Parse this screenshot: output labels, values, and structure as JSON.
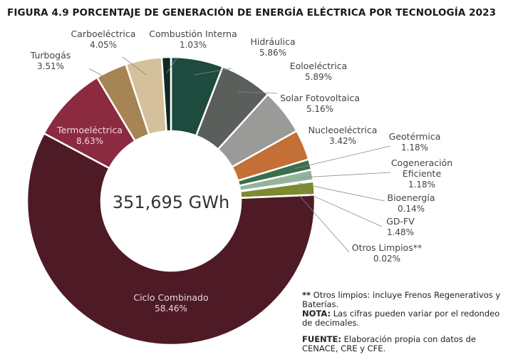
{
  "title": "FIGURA 4.9 PORCENTAJE DE GENERACIÓN DE ENERGÍA ELÉCTRICA POR TECNOLOGÍA 2023",
  "center_label": "351,695  GWh",
  "notes": {
    "asterisk_mark": "**",
    "asterisk_text": " Otros limpios: incluye Frenos Regenerativos y Baterías.",
    "nota_label": "NOTA:",
    "nota_text": " Las cifras pueden variar por el redondeo de decimales.",
    "fuente_label": "FUENTE:",
    "fuente_text": " Elaboración propia con datos de CENACE, CRE y CFE."
  },
  "chart_data": {
    "type": "pie",
    "title": "FIGURA 4.9 PORCENTAJE DE GENERACIÓN DE ENERGÍA ELÉCTRICA POR TECNOLOGÍA 2023",
    "total": "351,695 GWh",
    "slices": [
      {
        "name": "Hidráulica",
        "value": 5.86,
        "label": "5.86%",
        "color": "#1f4a3e"
      },
      {
        "name": "Eoloeléctrica",
        "value": 5.89,
        "label": "5.89%",
        "color": "#5a5f5b"
      },
      {
        "name": "Solar Fotovoltaica",
        "value": 5.16,
        "label": "5.16%",
        "color": "#9a9a98"
      },
      {
        "name": "Nucleoeléctrica",
        "value": 3.42,
        "label": "3.42%",
        "color": "#c46f35"
      },
      {
        "name": "Geotérmica",
        "value": 1.18,
        "label": "1.18%",
        "color": "#3b6e4c"
      },
      {
        "name": "Cogeneración Eficiente",
        "value": 1.18,
        "label": "1.18%",
        "color": "#93b49c"
      },
      {
        "name": "Bioenergía",
        "value": 0.14,
        "label": "0.14%",
        "color": "#d8ddd4"
      },
      {
        "name": "GD-FV",
        "value": 1.48,
        "label": "1.48%",
        "color": "#7d8a2e"
      },
      {
        "name": "Otros Limpios**",
        "value": 0.02,
        "label": "0.02%",
        "color": "#b7b7b5"
      },
      {
        "name": "Ciclo Combinado",
        "value": 58.46,
        "label": "58.46%",
        "color": "#4e1a26"
      },
      {
        "name": "Termoeléctrica",
        "value": 8.63,
        "label": "8.63%",
        "color": "#8b2a40"
      },
      {
        "name": "Turbogás",
        "value": 3.51,
        "label": "3.51%",
        "color": "#a78453"
      },
      {
        "name": "Carboeléctrica",
        "value": 4.05,
        "label": "4.05%",
        "color": "#d5c09c"
      },
      {
        "name": "Combustión Interna",
        "value": 1.03,
        "label": "1.03%",
        "color": "#0f2a23"
      }
    ]
  }
}
